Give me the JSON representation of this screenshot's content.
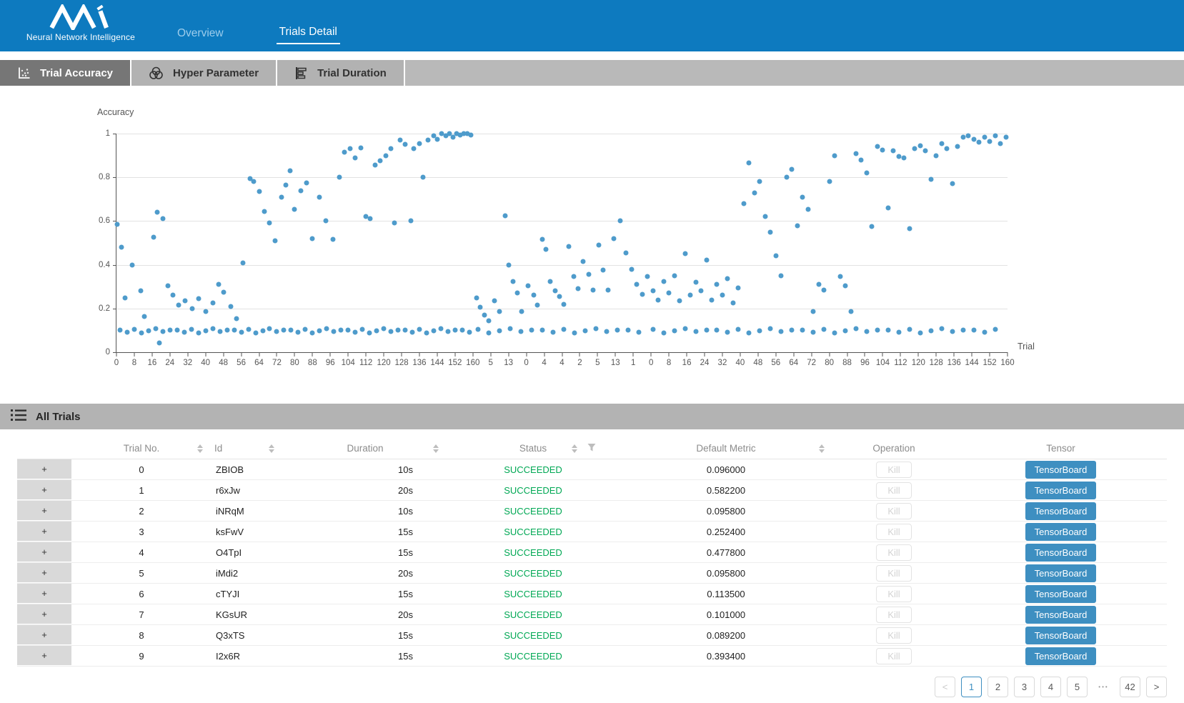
{
  "nav": {
    "logo_subtitle": "Neural Network Intelligence",
    "tabs": [
      {
        "label": "Overview",
        "active": false
      },
      {
        "label": "Trials Detail",
        "active": true
      }
    ]
  },
  "toolbar": {
    "tabs": [
      {
        "label": "Trial Accuracy",
        "active": true
      },
      {
        "label": "Hyper Parameter",
        "active": false
      },
      {
        "label": "Trial Duration",
        "active": false
      }
    ]
  },
  "chart_data": {
    "type": "scatter",
    "ylabel": "Accuracy",
    "xlabel": "Trial",
    "ylim": [
      0,
      1
    ],
    "grid": true,
    "point_color": "#4e9bcb",
    "y_ticks": [
      "1",
      "0.8",
      "0.6",
      "0.4",
      "0.2",
      "0"
    ],
    "x_tick_labels": [
      "0",
      "8",
      "16",
      "24",
      "32",
      "40",
      "48",
      "56",
      "64",
      "72",
      "80",
      "88",
      "96",
      "104",
      "112",
      "120",
      "128",
      "136",
      "144",
      "152",
      "160",
      "5",
      "13",
      "0",
      "4",
      "4",
      "2",
      "5",
      "13",
      "1",
      "0",
      "8",
      "16",
      "24",
      "32",
      "40",
      "48",
      "56",
      "64",
      "72",
      "80",
      "88",
      "96",
      "104",
      "112",
      "120",
      "128",
      "136",
      "144",
      "152",
      "160"
    ],
    "points": [
      [
        0.001,
        0.585
      ],
      [
        0.006,
        0.48
      ],
      [
        0.01,
        0.25
      ],
      [
        0.018,
        0.4
      ],
      [
        0.027,
        0.28
      ],
      [
        0.031,
        0.165
      ],
      [
        0.042,
        0.525
      ],
      [
        0.046,
        0.64
      ],
      [
        0.052,
        0.61
      ],
      [
        0.058,
        0.305
      ],
      [
        0.063,
        0.26
      ],
      [
        0.07,
        0.215
      ],
      [
        0.077,
        0.235
      ],
      [
        0.085,
        0.2
      ],
      [
        0.092,
        0.245
      ],
      [
        0.1,
        0.185
      ],
      [
        0.108,
        0.225
      ],
      [
        0.115,
        0.31
      ],
      [
        0.12,
        0.275
      ],
      [
        0.128,
        0.21
      ],
      [
        0.135,
        0.155
      ],
      [
        0.142,
        0.41
      ],
      [
        0.15,
        0.795
      ],
      [
        0.154,
        0.78
      ],
      [
        0.16,
        0.735
      ],
      [
        0.166,
        0.645
      ],
      [
        0.172,
        0.59
      ],
      [
        0.178,
        0.51
      ],
      [
        0.185,
        0.71
      ],
      [
        0.19,
        0.765
      ],
      [
        0.195,
        0.83
      ],
      [
        0.2,
        0.655
      ],
      [
        0.207,
        0.74
      ],
      [
        0.213,
        0.775
      ],
      [
        0.22,
        0.52
      ],
      [
        0.228,
        0.71
      ],
      [
        0.235,
        0.6
      ],
      [
        0.243,
        0.515
      ],
      [
        0.25,
        0.8
      ],
      [
        0.256,
        0.915
      ],
      [
        0.262,
        0.93
      ],
      [
        0.268,
        0.89
      ],
      [
        0.274,
        0.935
      ],
      [
        0.28,
        0.62
      ],
      [
        0.285,
        0.61
      ],
      [
        0.29,
        0.855
      ],
      [
        0.296,
        0.875
      ],
      [
        0.302,
        0.9
      ],
      [
        0.308,
        0.93
      ],
      [
        0.312,
        0.59
      ],
      [
        0.318,
        0.97
      ],
      [
        0.324,
        0.95
      ],
      [
        0.33,
        0.6
      ],
      [
        0.334,
        0.93
      ],
      [
        0.34,
        0.955
      ],
      [
        0.344,
        0.8
      ],
      [
        0.35,
        0.97
      ],
      [
        0.356,
        0.99
      ],
      [
        0.36,
        0.975
      ],
      [
        0.365,
        1.0
      ],
      [
        0.37,
        0.99
      ],
      [
        0.374,
        1.0
      ],
      [
        0.378,
        0.985
      ],
      [
        0.382,
        1.0
      ],
      [
        0.386,
        0.995
      ],
      [
        0.39,
        1.0
      ],
      [
        0.394,
        1.0
      ],
      [
        0.398,
        0.995
      ],
      [
        0.004,
        0.1
      ],
      [
        0.012,
        0.091
      ],
      [
        0.02,
        0.104
      ],
      [
        0.028,
        0.087
      ],
      [
        0.036,
        0.097
      ],
      [
        0.044,
        0.109
      ],
      [
        0.052,
        0.094
      ],
      [
        0.06,
        0.101
      ],
      [
        0.068,
        0.1
      ],
      [
        0.076,
        0.091
      ],
      [
        0.084,
        0.104
      ],
      [
        0.092,
        0.087
      ],
      [
        0.1,
        0.097
      ],
      [
        0.108,
        0.109
      ],
      [
        0.116,
        0.094
      ],
      [
        0.124,
        0.101
      ],
      [
        0.132,
        0.1
      ],
      [
        0.14,
        0.091
      ],
      [
        0.148,
        0.104
      ],
      [
        0.156,
        0.087
      ],
      [
        0.164,
        0.097
      ],
      [
        0.172,
        0.109
      ],
      [
        0.18,
        0.094
      ],
      [
        0.188,
        0.101
      ],
      [
        0.196,
        0.1
      ],
      [
        0.204,
        0.091
      ],
      [
        0.212,
        0.104
      ],
      [
        0.22,
        0.087
      ],
      [
        0.228,
        0.097
      ],
      [
        0.236,
        0.109
      ],
      [
        0.244,
        0.094
      ],
      [
        0.252,
        0.101
      ],
      [
        0.26,
        0.1
      ],
      [
        0.268,
        0.091
      ],
      [
        0.276,
        0.104
      ],
      [
        0.284,
        0.087
      ],
      [
        0.292,
        0.097
      ],
      [
        0.3,
        0.109
      ],
      [
        0.308,
        0.094
      ],
      [
        0.316,
        0.101
      ],
      [
        0.324,
        0.1
      ],
      [
        0.332,
        0.091
      ],
      [
        0.34,
        0.104
      ],
      [
        0.348,
        0.087
      ],
      [
        0.356,
        0.097
      ],
      [
        0.364,
        0.109
      ],
      [
        0.372,
        0.094
      ],
      [
        0.38,
        0.101
      ],
      [
        0.388,
        0.1
      ],
      [
        0.396,
        0.091
      ],
      [
        0.048,
        0.042
      ],
      [
        0.404,
        0.25
      ],
      [
        0.408,
        0.205
      ],
      [
        0.413,
        0.17
      ],
      [
        0.418,
        0.145
      ],
      [
        0.424,
        0.235
      ],
      [
        0.43,
        0.185
      ],
      [
        0.436,
        0.625
      ],
      [
        0.44,
        0.4
      ],
      [
        0.445,
        0.325
      ],
      [
        0.45,
        0.27
      ],
      [
        0.455,
        0.185
      ],
      [
        0.462,
        0.305
      ],
      [
        0.468,
        0.26
      ],
      [
        0.472,
        0.215
      ],
      [
        0.478,
        0.515
      ],
      [
        0.482,
        0.47
      ],
      [
        0.487,
        0.325
      ],
      [
        0.492,
        0.28
      ],
      [
        0.497,
        0.255
      ],
      [
        0.502,
        0.22
      ],
      [
        0.508,
        0.485
      ],
      [
        0.513,
        0.345
      ],
      [
        0.518,
        0.29
      ],
      [
        0.524,
        0.415
      ],
      [
        0.53,
        0.355
      ],
      [
        0.535,
        0.285
      ],
      [
        0.541,
        0.49
      ],
      [
        0.546,
        0.375
      ],
      [
        0.552,
        0.285
      ],
      [
        0.558,
        0.52
      ],
      [
        0.565,
        0.6
      ],
      [
        0.572,
        0.455
      ],
      [
        0.578,
        0.38
      ],
      [
        0.584,
        0.31
      ],
      [
        0.59,
        0.265
      ],
      [
        0.596,
        0.345
      ],
      [
        0.406,
        0.104
      ],
      [
        0.418,
        0.087
      ],
      [
        0.43,
        0.097
      ],
      [
        0.442,
        0.109
      ],
      [
        0.454,
        0.094
      ],
      [
        0.466,
        0.101
      ],
      [
        0.478,
        0.1
      ],
      [
        0.49,
        0.091
      ],
      [
        0.502,
        0.104
      ],
      [
        0.514,
        0.087
      ],
      [
        0.526,
        0.097
      ],
      [
        0.538,
        0.109
      ],
      [
        0.55,
        0.094
      ],
      [
        0.562,
        0.101
      ],
      [
        0.574,
        0.1
      ],
      [
        0.586,
        0.091
      ],
      [
        0.602,
        0.28
      ],
      [
        0.608,
        0.24
      ],
      [
        0.614,
        0.325
      ],
      [
        0.62,
        0.27
      ],
      [
        0.626,
        0.35
      ],
      [
        0.632,
        0.235
      ],
      [
        0.638,
        0.45
      ],
      [
        0.644,
        0.26
      ],
      [
        0.65,
        0.32
      ],
      [
        0.656,
        0.28
      ],
      [
        0.662,
        0.42
      ],
      [
        0.668,
        0.24
      ],
      [
        0.674,
        0.31
      ],
      [
        0.68,
        0.26
      ],
      [
        0.686,
        0.335
      ],
      [
        0.692,
        0.225
      ],
      [
        0.698,
        0.295
      ],
      [
        0.704,
        0.68
      ],
      [
        0.71,
        0.865
      ],
      [
        0.716,
        0.73
      ],
      [
        0.722,
        0.78
      ],
      [
        0.728,
        0.62
      ],
      [
        0.734,
        0.55
      ],
      [
        0.74,
        0.44
      ],
      [
        0.746,
        0.35
      ],
      [
        0.752,
        0.8
      ],
      [
        0.758,
        0.835
      ],
      [
        0.764,
        0.58
      ],
      [
        0.77,
        0.71
      ],
      [
        0.776,
        0.655
      ],
      [
        0.782,
        0.185
      ],
      [
        0.788,
        0.31
      ],
      [
        0.794,
        0.285
      ],
      [
        0.8,
        0.78
      ],
      [
        0.806,
        0.9
      ],
      [
        0.812,
        0.345
      ],
      [
        0.818,
        0.305
      ],
      [
        0.824,
        0.185
      ],
      [
        0.83,
        0.91
      ],
      [
        0.836,
        0.88
      ],
      [
        0.842,
        0.82
      ],
      [
        0.848,
        0.575
      ],
      [
        0.854,
        0.94
      ],
      [
        0.86,
        0.925
      ],
      [
        0.866,
        0.66
      ],
      [
        0.872,
        0.92
      ],
      [
        0.878,
        0.895
      ],
      [
        0.884,
        0.89
      ],
      [
        0.89,
        0.565
      ],
      [
        0.896,
        0.93
      ],
      [
        0.902,
        0.945
      ],
      [
        0.908,
        0.92
      ],
      [
        0.914,
        0.79
      ],
      [
        0.92,
        0.9
      ],
      [
        0.926,
        0.955
      ],
      [
        0.932,
        0.93
      ],
      [
        0.938,
        0.77
      ],
      [
        0.944,
        0.94
      ],
      [
        0.95,
        0.985
      ],
      [
        0.956,
        0.99
      ],
      [
        0.962,
        0.975
      ],
      [
        0.968,
        0.96
      ],
      [
        0.974,
        0.985
      ],
      [
        0.98,
        0.965
      ],
      [
        0.986,
        0.99
      ],
      [
        0.992,
        0.955
      ],
      [
        0.998,
        0.985
      ],
      [
        0.602,
        0.104
      ],
      [
        0.614,
        0.087
      ],
      [
        0.626,
        0.097
      ],
      [
        0.638,
        0.109
      ],
      [
        0.65,
        0.094
      ],
      [
        0.662,
        0.101
      ],
      [
        0.674,
        0.1
      ],
      [
        0.686,
        0.091
      ],
      [
        0.698,
        0.104
      ],
      [
        0.71,
        0.087
      ],
      [
        0.722,
        0.097
      ],
      [
        0.734,
        0.109
      ],
      [
        0.746,
        0.094
      ],
      [
        0.758,
        0.101
      ],
      [
        0.77,
        0.1
      ],
      [
        0.782,
        0.091
      ],
      [
        0.794,
        0.104
      ],
      [
        0.806,
        0.087
      ],
      [
        0.818,
        0.097
      ],
      [
        0.83,
        0.109
      ],
      [
        0.842,
        0.094
      ],
      [
        0.854,
        0.101
      ],
      [
        0.866,
        0.1
      ],
      [
        0.878,
        0.091
      ],
      [
        0.89,
        0.104
      ],
      [
        0.902,
        0.087
      ],
      [
        0.914,
        0.097
      ],
      [
        0.926,
        0.109
      ],
      [
        0.938,
        0.094
      ],
      [
        0.95,
        0.101
      ],
      [
        0.962,
        0.1
      ],
      [
        0.974,
        0.091
      ],
      [
        0.986,
        0.104
      ]
    ]
  },
  "table": {
    "section_title": "All Trials",
    "columns": [
      "Trial No.",
      "Id",
      "Duration",
      "Status",
      "Default Metric",
      "Operation",
      "Tensor"
    ],
    "expander_symbol": "+",
    "kill_label": "Kill",
    "tensorboard_label": "TensorBoard",
    "rows": [
      {
        "trial_no": "0",
        "id": "ZBIOB",
        "duration": "10s",
        "status": "SUCCEEDED",
        "default_metric": "0.096000"
      },
      {
        "trial_no": "1",
        "id": "r6xJw",
        "duration": "20s",
        "status": "SUCCEEDED",
        "default_metric": "0.582200"
      },
      {
        "trial_no": "2",
        "id": "iNRqM",
        "duration": "10s",
        "status": "SUCCEEDED",
        "default_metric": "0.095800"
      },
      {
        "trial_no": "3",
        "id": "ksFwV",
        "duration": "15s",
        "status": "SUCCEEDED",
        "default_metric": "0.252400"
      },
      {
        "trial_no": "4",
        "id": "O4TpI",
        "duration": "15s",
        "status": "SUCCEEDED",
        "default_metric": "0.477800"
      },
      {
        "trial_no": "5",
        "id": "iMdi2",
        "duration": "20s",
        "status": "SUCCEEDED",
        "default_metric": "0.095800"
      },
      {
        "trial_no": "6",
        "id": "cTYJI",
        "duration": "15s",
        "status": "SUCCEEDED",
        "default_metric": "0.113500"
      },
      {
        "trial_no": "7",
        "id": "KGsUR",
        "duration": "20s",
        "status": "SUCCEEDED",
        "default_metric": "0.101000"
      },
      {
        "trial_no": "8",
        "id": "Q3xTS",
        "duration": "15s",
        "status": "SUCCEEDED",
        "default_metric": "0.089200"
      },
      {
        "trial_no": "9",
        "id": "I2x6R",
        "duration": "15s",
        "status": "SUCCEEDED",
        "default_metric": "0.393400"
      }
    ]
  },
  "pagination": {
    "prev_icon": "<",
    "next_icon": ">",
    "pages": [
      "1",
      "2",
      "3",
      "4",
      "5"
    ],
    "ellipsis": "•••",
    "last_page": "42",
    "active_page": "1"
  },
  "colors": {
    "nav_blue": "#0d7abf",
    "accent_blue": "#3e8fc1",
    "succeeded_green": "#00a854",
    "dot_blue": "#4e9bcb"
  }
}
